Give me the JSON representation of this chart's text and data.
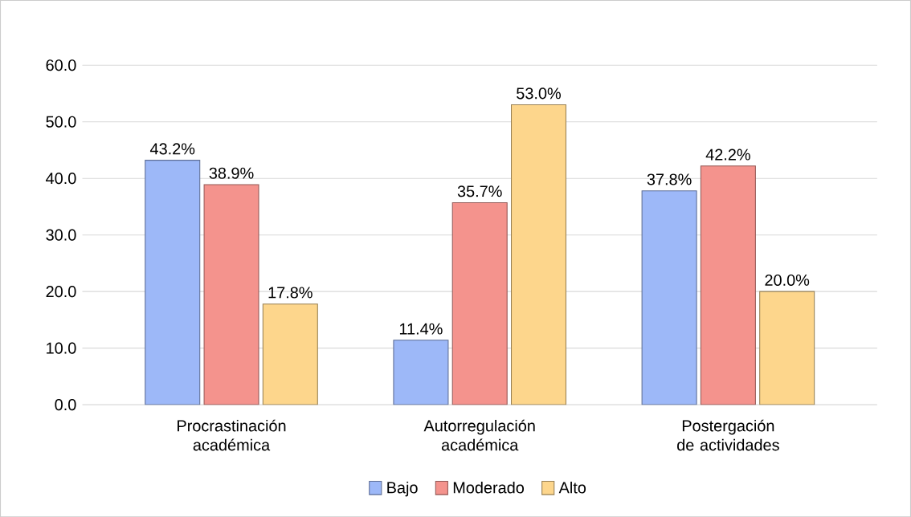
{
  "chart_data": {
    "type": "bar",
    "categories": [
      "Procrastinación académica",
      "Autorregulación académica",
      "Postergación de actividades"
    ],
    "series": [
      {
        "name": "Bajo",
        "color": "#9db8f8",
        "values": [
          43.2,
          11.4,
          37.8
        ],
        "value_labels": [
          "43.2%",
          "11.4%",
          "37.8%"
        ]
      },
      {
        "name": "Moderado",
        "color": "#f4938d",
        "values": [
          38.9,
          35.7,
          42.2
        ],
        "value_labels": [
          "38.9%",
          "35.7%",
          "42.2%"
        ]
      },
      {
        "name": "Alto",
        "color": "#fdd68c",
        "values": [
          17.8,
          53.0,
          20.0
        ],
        "value_labels": [
          "17.8%",
          "53.0%",
          "20.0%"
        ]
      }
    ],
    "ylim": [
      0,
      60
    ],
    "yticks": [
      {
        "value": 0,
        "label": "0.0"
      },
      {
        "value": 10,
        "label": "10.0"
      },
      {
        "value": 20,
        "label": "20.0"
      },
      {
        "value": 30,
        "label": "30.0"
      },
      {
        "value": 40,
        "label": "40.0"
      },
      {
        "value": 50,
        "label": "50.0"
      },
      {
        "value": 60,
        "label": "60.0"
      }
    ],
    "grid": "y",
    "legend": "bottom"
  }
}
